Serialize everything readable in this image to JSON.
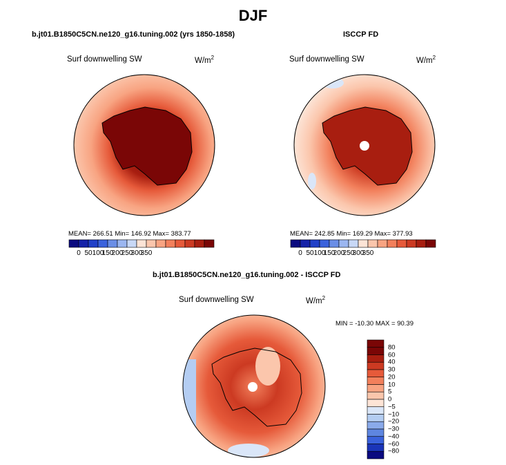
{
  "title": "DJF",
  "panels": [
    {
      "id": "model",
      "title": "b.jt01.B1850C5CN.ne120_g16.tuning.002 (yrs 1850-1858)",
      "variable": "Surf downwelling SW",
      "units_base": "W/m",
      "units_exp": "2",
      "stats": {
        "mean": "266.51",
        "min": "146.92",
        "max": "383.77"
      },
      "stats_text": "MEAN= 266.51   Min= 146.92   Max= 383.77"
    },
    {
      "id": "obs",
      "title": "ISCCP FD",
      "variable": "Surf downwelling SW",
      "units_base": "W/m",
      "units_exp": "2",
      "stats": {
        "mean": "242.85",
        "min": "169.29",
        "max": "377.93"
      },
      "stats_text": "MEAN= 242.85   Min= 169.29   Max= 377.93"
    },
    {
      "id": "diff",
      "title": "b.jt01.B1850C5CN.ne120_g16.tuning.002 - ISCCP FD",
      "variable": "Surf downwelling SW",
      "units_base": "W/m",
      "units_exp": "2",
      "stats": {
        "min": "-10.30",
        "max": "90.39"
      },
      "stats_text": "MIN = -10.30  MAX =  90.39"
    }
  ],
  "colorbar_abs": {
    "labels": [
      "0",
      "50",
      "100",
      "150",
      "200",
      "250",
      "300",
      "350"
    ],
    "colors": [
      "#0a0a80",
      "#1522a8",
      "#2040c8",
      "#3a62dc",
      "#6a8ee6",
      "#9bb6f0",
      "#c8d8f6",
      "#fde4d6",
      "#fbc6ac",
      "#f8a482",
      "#f2805c",
      "#e65a3a",
      "#cc3a22",
      "#a81e10",
      "#7a0606"
    ]
  },
  "colorbar_diff": {
    "labels": [
      "80",
      "60",
      "40",
      "30",
      "20",
      "10",
      "5",
      "0",
      "−5",
      "−10",
      "−20",
      "−30",
      "−40",
      "−60",
      "−80"
    ],
    "colors": [
      "#7a0606",
      "#a81e10",
      "#cc3a22",
      "#e65a3a",
      "#f2805c",
      "#f8a482",
      "#fbc6ac",
      "#fde4d6",
      "#dae6f8",
      "#b4cdf2",
      "#8aaaea",
      "#5e86e0",
      "#3a62dc",
      "#1a34b8",
      "#0a0a80"
    ]
  },
  "chart_data": [
    {
      "type": "heatmap",
      "projection": "south polar stereographic",
      "title": "b.jt01.B1850C5CN.ne120_g16.tuning.002 (yrs 1850-1858)",
      "variable": "Surf downwelling SW",
      "units": "W/m^2",
      "mean": 266.51,
      "min": 146.92,
      "max": 383.77,
      "colorbar_ticks": [
        0,
        50,
        100,
        150,
        200,
        250,
        300,
        350
      ]
    },
    {
      "type": "heatmap",
      "projection": "south polar stereographic",
      "title": "ISCCP FD",
      "variable": "Surf downwelling SW",
      "units": "W/m^2",
      "mean": 242.85,
      "min": 169.29,
      "max": 377.93,
      "colorbar_ticks": [
        0,
        50,
        100,
        150,
        200,
        250,
        300,
        350
      ]
    },
    {
      "type": "heatmap",
      "projection": "south polar stereographic",
      "title": "b.jt01.B1850C5CN.ne120_g16.tuning.002 - ISCCP FD",
      "variable": "Surf downwelling SW",
      "units": "W/m^2",
      "min": -10.3,
      "max": 90.39,
      "colorbar_ticks": [
        80,
        60,
        40,
        30,
        20,
        10,
        5,
        0,
        -5,
        -10,
        -20,
        -30,
        -40,
        -60,
        -80
      ]
    }
  ]
}
